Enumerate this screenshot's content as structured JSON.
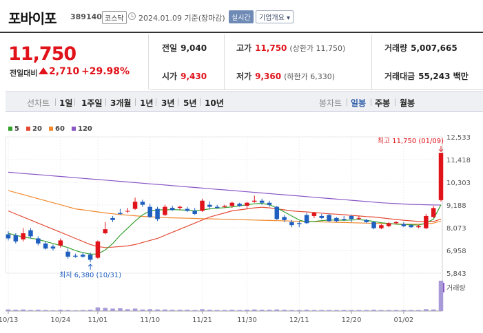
{
  "header": {
    "name": "포바이포",
    "code": "389140",
    "market": "코스닥",
    "date_label": "2024.01.09  기준(장마감)",
    "realtime_label": "실시간",
    "company_info_label": "기업개요 ▾"
  },
  "price": {
    "current": "11,750",
    "prev_label": "전일대비",
    "change": "2,710",
    "change_pct": "+29.98%"
  },
  "stats": {
    "prev_close_label": "전일",
    "prev_close": "9,040",
    "high_label": "고가",
    "high": "11,750",
    "upper_limit": "(상한가 11,750)",
    "volume_label": "거래량",
    "volume": "5,007,665",
    "open_label": "시가",
    "open": "9,430",
    "low_label": "저가",
    "low": "9,360",
    "lower_limit": "(하한가 6,330)",
    "amount_label": "거래대금",
    "amount": "55,243 백만"
  },
  "period_bar": {
    "line_head": "선차트",
    "line_items": [
      "1일",
      "1주일",
      "3개월",
      "1년",
      "3년",
      "5년",
      "10년"
    ],
    "candle_head": "봉차트",
    "candle_items": [
      "일봉",
      "주봉",
      "월봉"
    ],
    "candle_active": "일봉"
  },
  "colors": {
    "up": "#e0121a",
    "down": "#1f5fbf",
    "ma5": "#33a02c",
    "ma20": "#e34a33",
    "ma60": "#f0882e",
    "ma120": "#8a56c6"
  },
  "chart_data": {
    "type": "candlestick",
    "legend": [
      {
        "name": "5",
        "color": "#33a02c"
      },
      {
        "name": "20",
        "color": "#e34a33"
      },
      {
        "name": "60",
        "color": "#f0882e"
      },
      {
        "name": "120",
        "color": "#8a56c6"
      }
    ],
    "y_ticks": [
      "12,533",
      "11,418",
      "10,303",
      "9,188",
      "8,073",
      "6,958",
      "5,843"
    ],
    "y_tick_values": [
      12533,
      11418,
      10303,
      9188,
      8073,
      6958,
      5843
    ],
    "ylim": [
      5843,
      12533
    ],
    "x_tick_labels": [
      "10/13",
      "10/24",
      "11/01",
      "11/10",
      "11/21",
      "11/30",
      "12/11",
      "12/20",
      "01/02"
    ],
    "x_tick_index": [
      0,
      7,
      12,
      19,
      26,
      32,
      39,
      46,
      53
    ],
    "max_annotation": "최고 11,750 (01/09)",
    "min_annotation": "최저 6,380 (10/31)",
    "volume_label": "거래량",
    "candles": [
      {
        "o": 7750,
        "c": 7550,
        "h": 7900,
        "l": 7450
      },
      {
        "o": 7700,
        "c": 7400,
        "h": 7800,
        "l": 7300
      },
      {
        "o": 7500,
        "c": 7800,
        "h": 8050,
        "l": 7400
      },
      {
        "o": 7950,
        "c": 7650,
        "h": 8050,
        "l": 7550
      },
      {
        "o": 7550,
        "c": 7300,
        "h": 7650,
        "l": 7200
      },
      {
        "o": 7300,
        "c": 7050,
        "h": 7400,
        "l": 7000
      },
      {
        "o": 7150,
        "c": 7050,
        "h": 7250,
        "l": 6950
      },
      {
        "o": 7200,
        "c": 7450,
        "h": 7550,
        "l": 7100
      },
      {
        "o": 6900,
        "c": 6650,
        "h": 7050,
        "l": 6550
      },
      {
        "o": 6700,
        "c": 6650,
        "h": 6800,
        "l": 6600
      },
      {
        "o": 6750,
        "c": 6650,
        "h": 6850,
        "l": 6600
      },
      {
        "o": 6750,
        "c": 6500,
        "h": 6850,
        "l": 6380
      },
      {
        "o": 6600,
        "c": 7400,
        "h": 7450,
        "l": 6550
      },
      {
        "o": 7800,
        "c": 8000,
        "h": 8350,
        "l": 7750
      },
      {
        "o": 8550,
        "c": 8450,
        "h": 8650,
        "l": 8350
      },
      {
        "o": 8800,
        "c": 8750,
        "h": 9000,
        "l": 8700
      },
      {
        "o": 8900,
        "c": 8900,
        "h": 9050,
        "l": 8800
      },
      {
        "o": 9000,
        "c": 9350,
        "h": 9550,
        "l": 8950
      },
      {
        "o": 9350,
        "c": 9200,
        "h": 9450,
        "l": 9100
      },
      {
        "o": 9100,
        "c": 8600,
        "h": 9250,
        "l": 8550
      },
      {
        "o": 9000,
        "c": 8500,
        "h": 9100,
        "l": 8400
      },
      {
        "o": 8700,
        "c": 9100,
        "h": 9200,
        "l": 8650
      },
      {
        "o": 9050,
        "c": 8950,
        "h": 9150,
        "l": 8900
      },
      {
        "o": 9050,
        "c": 9100,
        "h": 9150,
        "l": 8950
      },
      {
        "o": 9000,
        "c": 8900,
        "h": 9100,
        "l": 8850
      },
      {
        "o": 8900,
        "c": 8750,
        "h": 9050,
        "l": 8700
      },
      {
        "o": 8900,
        "c": 9400,
        "h": 9500,
        "l": 8850
      },
      {
        "o": 9200,
        "c": 9100,
        "h": 9350,
        "l": 9000
      },
      {
        "o": 9100,
        "c": 9050,
        "h": 9200,
        "l": 9000
      },
      {
        "o": 9100,
        "c": 9150,
        "h": 9200,
        "l": 9050
      },
      {
        "o": 9150,
        "c": 9300,
        "h": 9350,
        "l": 9050
      },
      {
        "o": 9250,
        "c": 9150,
        "h": 9300,
        "l": 9100
      },
      {
        "o": 9150,
        "c": 9300,
        "h": 9350,
        "l": 9000
      },
      {
        "o": 9350,
        "c": 9400,
        "h": 9650,
        "l": 9300
      },
      {
        "o": 9400,
        "c": 9300,
        "h": 9500,
        "l": 9200
      },
      {
        "o": 9300,
        "c": 9200,
        "h": 9400,
        "l": 9100
      },
      {
        "o": 9100,
        "c": 8500,
        "h": 9150,
        "l": 8450
      },
      {
        "o": 8600,
        "c": 8450,
        "h": 8700,
        "l": 8350
      },
      {
        "o": 8350,
        "c": 8200,
        "h": 8450,
        "l": 8100
      },
      {
        "o": 8300,
        "c": 8250,
        "h": 8400,
        "l": 8100
      },
      {
        "o": 8700,
        "c": 8300,
        "h": 8800,
        "l": 8250
      },
      {
        "o": 8650,
        "c": 8800,
        "h": 8850,
        "l": 8550
      },
      {
        "o": 8650,
        "c": 8550,
        "h": 8750,
        "l": 8500
      },
      {
        "o": 8700,
        "c": 8400,
        "h": 8750,
        "l": 8350
      },
      {
        "o": 8550,
        "c": 8400,
        "h": 8600,
        "l": 8350
      },
      {
        "o": 8500,
        "c": 8450,
        "h": 8650,
        "l": 8400
      },
      {
        "o": 8650,
        "c": 8500,
        "h": 8700,
        "l": 8350
      },
      {
        "o": 8550,
        "c": 8550,
        "h": 8650,
        "l": 8450
      },
      {
        "o": 8450,
        "c": 8350,
        "h": 8500,
        "l": 8300
      },
      {
        "o": 8350,
        "c": 8050,
        "h": 8400,
        "l": 8000
      },
      {
        "o": 8050,
        "c": 8200,
        "h": 8250,
        "l": 8000
      },
      {
        "o": 8150,
        "c": 8300,
        "h": 8350,
        "l": 8100
      },
      {
        "o": 8300,
        "c": 8350,
        "h": 8400,
        "l": 8250
      },
      {
        "o": 8250,
        "c": 8150,
        "h": 8350,
        "l": 8100
      },
      {
        "o": 8200,
        "c": 8100,
        "h": 8250,
        "l": 8050
      },
      {
        "o": 8100,
        "c": 8150,
        "h": 8200,
        "l": 8050
      },
      {
        "o": 8050,
        "c": 8650,
        "h": 8750,
        "l": 8000
      },
      {
        "o": 8600,
        "c": 9040,
        "h": 9150,
        "l": 8550
      },
      {
        "o": 9430,
        "c": 11750,
        "h": 11750,
        "l": 9360
      }
    ],
    "volume": [
      0.05,
      0.04,
      0.05,
      0.03,
      0.04,
      0.03,
      0.02,
      0.04,
      0.03,
      0.02,
      0.03,
      0.04,
      0.12,
      0.1,
      0.08,
      0.09,
      0.06,
      0.08,
      0.05,
      0.06,
      0.05,
      0.05,
      0.04,
      0.04,
      0.04,
      0.03,
      0.06,
      0.04,
      0.03,
      0.03,
      0.04,
      0.03,
      0.04,
      0.05,
      0.04,
      0.04,
      0.05,
      0.04,
      0.03,
      0.03,
      0.04,
      0.03,
      0.03,
      0.03,
      0.03,
      0.03,
      0.03,
      0.03,
      0.03,
      0.04,
      0.03,
      0.03,
      0.03,
      0.03,
      0.03,
      0.03,
      0.06,
      0.05,
      1.0
    ],
    "ma5": [
      7800,
      7700,
      7620,
      7560,
      7500,
      7400,
      7300,
      7200,
      7100,
      6950,
      6850,
      6780,
      6780,
      6980,
      7300,
      7700,
      8050,
      8400,
      8700,
      8900,
      8950,
      8950,
      8960,
      8950,
      8930,
      8900,
      8950,
      9000,
      9030,
      9060,
      9100,
      9150,
      9200,
      9250,
      9270,
      9200,
      9050,
      8850,
      8650,
      8450,
      8350,
      8380,
      8420,
      8450,
      8450,
      8440,
      8450,
      8470,
      8440,
      8380,
      8320,
      8280,
      8250,
      8230,
      8220,
      8200,
      8300,
      8500,
      9200
    ],
    "ma20": [
      8900,
      8750,
      8600,
      8450,
      8300,
      8150,
      8000,
      7850,
      7700,
      7550,
      7400,
      7250,
      7150,
      7100,
      7120,
      7150,
      7180,
      7250,
      7350,
      7450,
      7550,
      7700,
      7850,
      8000,
      8150,
      8300,
      8450,
      8600,
      8700,
      8800,
      8900,
      8950,
      9000,
      9050,
      9080,
      9050,
      9000,
      8950,
      8900,
      8870,
      8850,
      8820,
      8790,
      8760,
      8740,
      8710,
      8680,
      8650,
      8620,
      8600,
      8560,
      8520,
      8480,
      8440,
      8410,
      8380,
      8360,
      8380,
      8500
    ],
    "ma60": [
      9900,
      9800,
      9700,
      9600,
      9500,
      9400,
      9300,
      9200,
      9100,
      9000,
      8950,
      8900,
      8850,
      8800,
      8760,
      8720,
      8690,
      8660,
      8630,
      8610,
      8590,
      8570,
      8560,
      8550,
      8540,
      8530,
      8520,
      8510,
      8500,
      8490,
      8480,
      8470,
      8460,
      8450,
      8440,
      8430,
      8420,
      8410,
      8400,
      8390,
      8380,
      8370,
      8360,
      8350,
      8340,
      8330,
      8320,
      8310,
      8300,
      8290,
      8280,
      8270,
      8260,
      8250,
      8250,
      8250,
      8260,
      8300,
      8400
    ],
    "ma120": [
      10800,
      10770,
      10740,
      10710,
      10680,
      10650,
      10620,
      10590,
      10560,
      10530,
      10500,
      10470,
      10440,
      10410,
      10380,
      10350,
      10320,
      10290,
      10260,
      10230,
      10200,
      10170,
      10140,
      10110,
      10080,
      10050,
      10020,
      9990,
      9960,
      9930,
      9900,
      9870,
      9840,
      9810,
      9780,
      9750,
      9720,
      9690,
      9660,
      9630,
      9600,
      9570,
      9540,
      9510,
      9480,
      9450,
      9420,
      9390,
      9360,
      9330,
      9300,
      9280,
      9260,
      9240,
      9220,
      9210,
      9200,
      9190,
      9188
    ]
  }
}
